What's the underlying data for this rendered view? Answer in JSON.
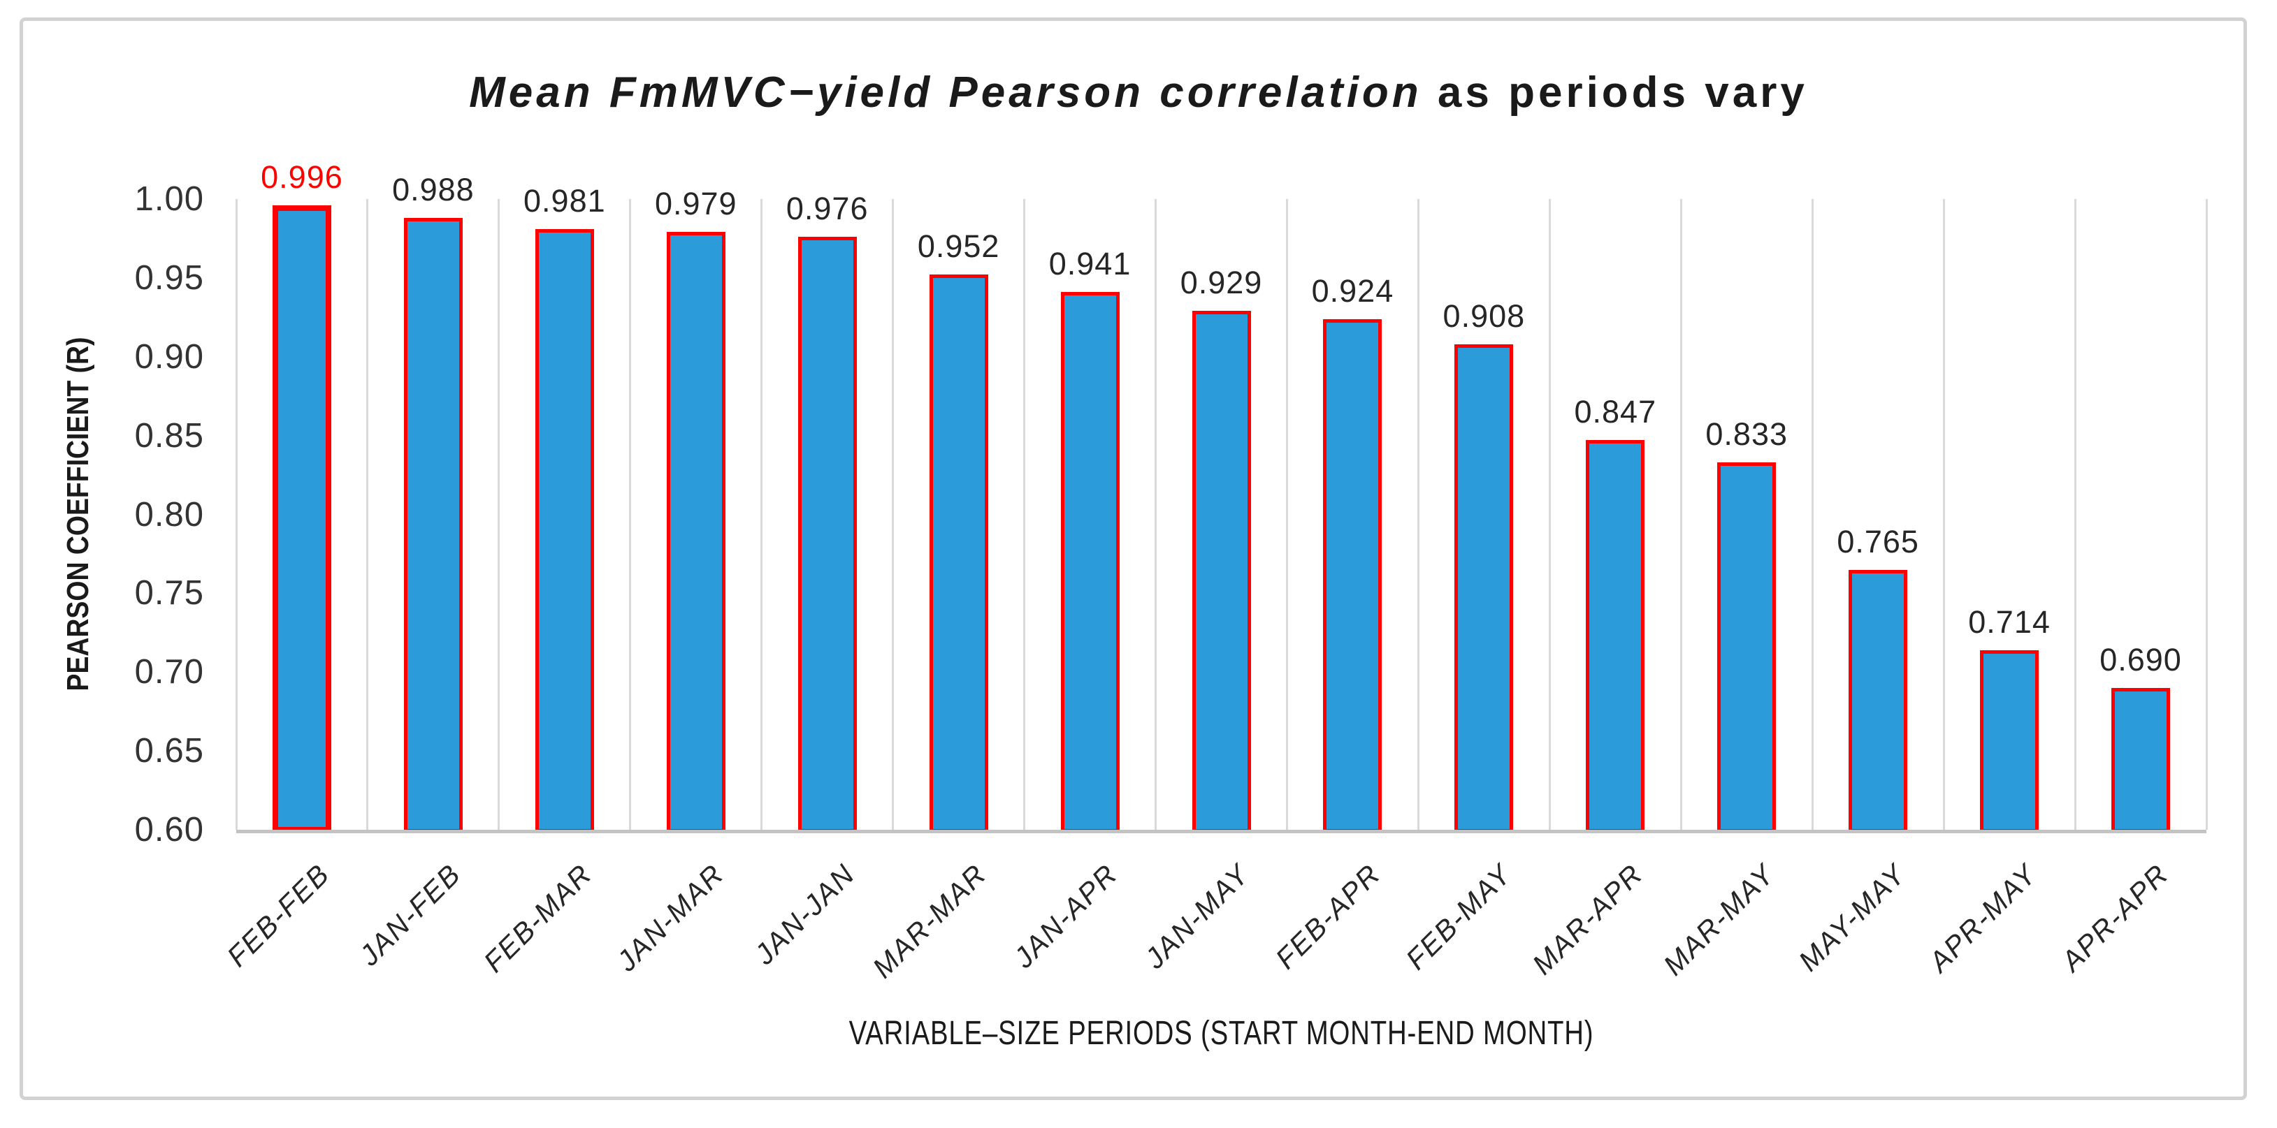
{
  "header": {
    "title_italic": "Mean FmMVC−yield Pearson correlation",
    "title_regular": " as periods vary"
  },
  "chart_data": {
    "type": "bar",
    "title": "Mean FmMVC−yield Pearson correlation as periods vary",
    "xlabel": "VARIABLE–SIZE PERIODS (START MONTH-END MONTH)",
    "ylabel": "PEARSON COEFFICIENT (R)",
    "categories": [
      "FEB-FEB",
      "JAN-FEB",
      "FEB-MAR",
      "JAN-MAR",
      "JAN-JAN",
      "MAR-MAR",
      "JAN-APR",
      "JAN-MAY",
      "FEB-APR",
      "FEB-MAY",
      "MAR-APR",
      "MAR-MAY",
      "MAY-MAY",
      "APR-MAY",
      "APR-APR"
    ],
    "values": [
      0.996,
      0.988,
      0.981,
      0.979,
      0.976,
      0.952,
      0.941,
      0.929,
      0.924,
      0.908,
      0.847,
      0.833,
      0.765,
      0.714,
      0.69
    ],
    "value_labels": [
      "0.996",
      "0.988",
      "0.981",
      "0.979",
      "0.976",
      "0.952",
      "0.941",
      "0.929",
      "0.924",
      "0.908",
      "0.847",
      "0.833",
      "0.765",
      "0.714",
      "0.690"
    ],
    "highlight_index": 0,
    "ylim": [
      0.6,
      1.0
    ],
    "yticks": [
      "1.00",
      "0.95",
      "0.90",
      "0.85",
      "0.80",
      "0.75",
      "0.70",
      "0.65",
      "0.60"
    ],
    "grid": "vertical-only",
    "legend": "none",
    "colors": {
      "bar_fill": "#2B9CD9",
      "bar_border": "#FF0000",
      "value_label": "#262626",
      "value_label_highlight": "#FF0000",
      "gridline": "#D9D9D9",
      "axis_line": "#C3C3C3",
      "frame_border": "#D2D2D2"
    }
  }
}
